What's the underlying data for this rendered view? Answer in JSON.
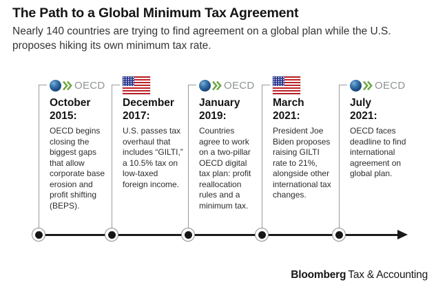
{
  "header": {
    "title": "The Path to a Global Minimum Tax Agreement",
    "subtitle": "Nearly 140 countries are trying to find agreement on a global plan while the U.S. proposes hiking its own minimum tax rate."
  },
  "timeline": {
    "oecd_wordmark": "OECD",
    "events": [
      {
        "icon": "oecd-logo",
        "date": "October\n2015:",
        "description": "OECD begins\nclosing the\nbiggest gaps\nthat allow\ncorporate base\nerosion and\nprofit shifting\n(BEPS)."
      },
      {
        "icon": "us-flag",
        "date": "December\n2017:",
        "description": "U.S. passes tax\noverhaul that\nincludes “GILTI,”\na 10.5% tax on\nlow-taxed\nforeign income."
      },
      {
        "icon": "oecd-logo",
        "date": "January\n2019:",
        "description": "Countries\nagree to work\non a two-pillar\nOECD digital\ntax plan: profit\nreallocation\nrules and a\nminimum tax."
      },
      {
        "icon": "us-flag",
        "date": "March\n2021:",
        "description": "President Joe\nBiden proposes\nraising GILTI\nrate to 21%,\nalongside other\ninternational tax\nchanges."
      },
      {
        "icon": "oecd-logo",
        "date": "July\n2021:",
        "description": "OECD faces\ndeadline to find\ninternational\nagreement on\nglobal plan."
      }
    ]
  },
  "footer": {
    "brand_bold": "Bloomberg",
    "brand_regular": "Tax & Accounting"
  },
  "colors": {
    "axis": "#1a1a1a",
    "connector_gray": "#9b9b9b",
    "oecd_chevron_green": "#6fa843",
    "oecd_wordmark_gray": "#8f9294",
    "flag_red": "#bb2026",
    "flag_blue": "#2b3990",
    "background": "#ffffff"
  }
}
